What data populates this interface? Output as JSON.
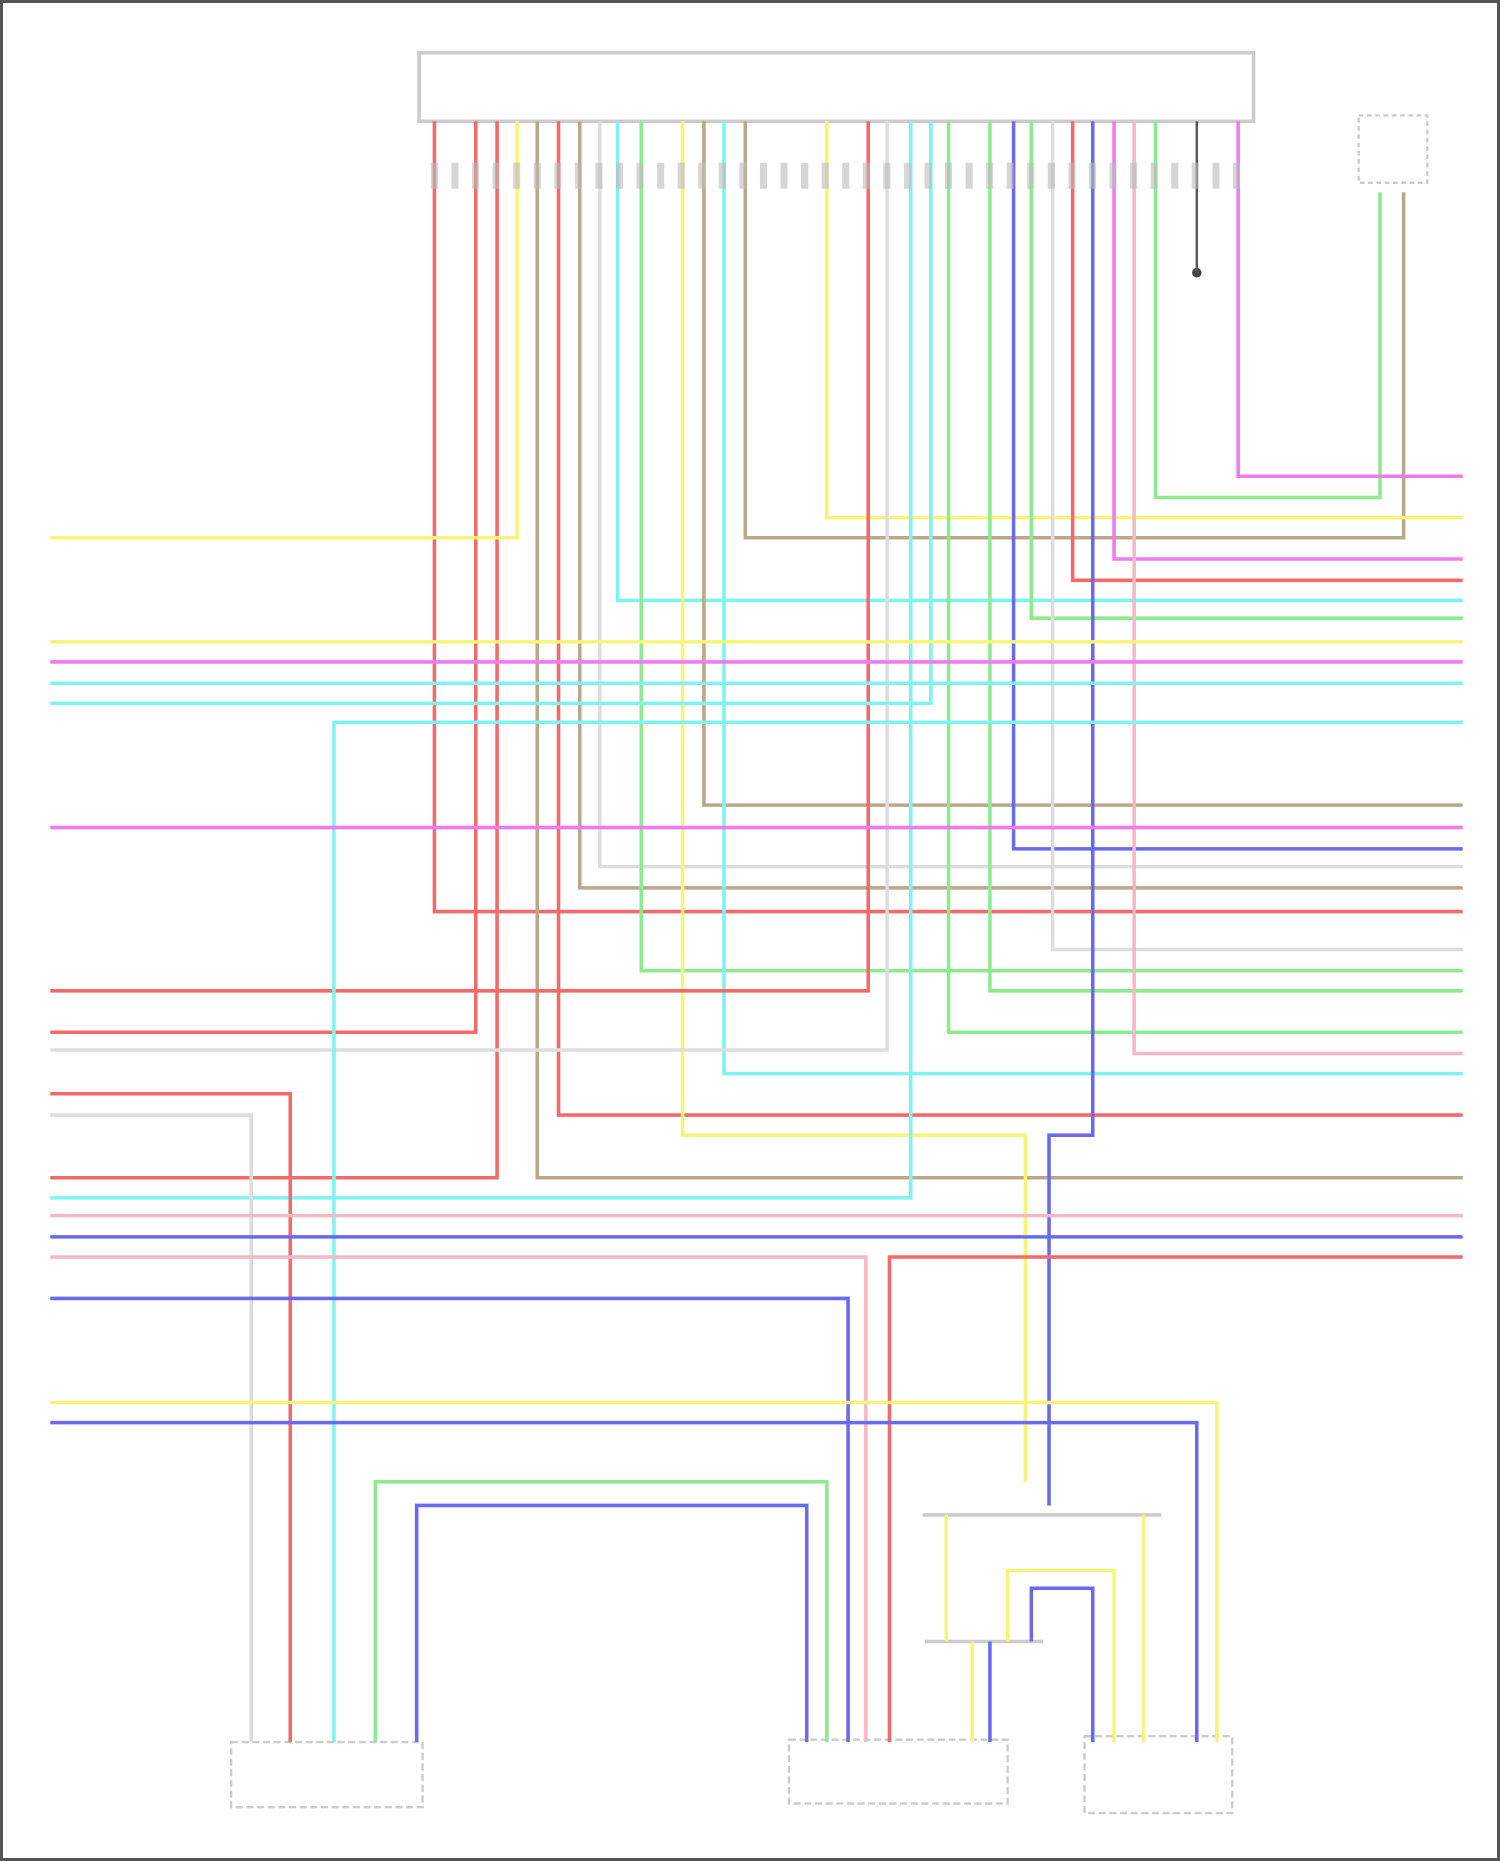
{
  "diagram": {
    "type": "wiring-diagram",
    "wire_colors": {
      "red": "#f26a6a",
      "yellow": "#f5f57a",
      "tan": "#b9a98a",
      "cyan": "#7ff2f2",
      "green": "#8eea8e",
      "blue": "#6a6af0",
      "magenta": "#f07af0",
      "pink": "#f5b8c4",
      "gray": "#dddddd",
      "black": "#555555"
    },
    "component_outline_color": "#cccccc"
  }
}
